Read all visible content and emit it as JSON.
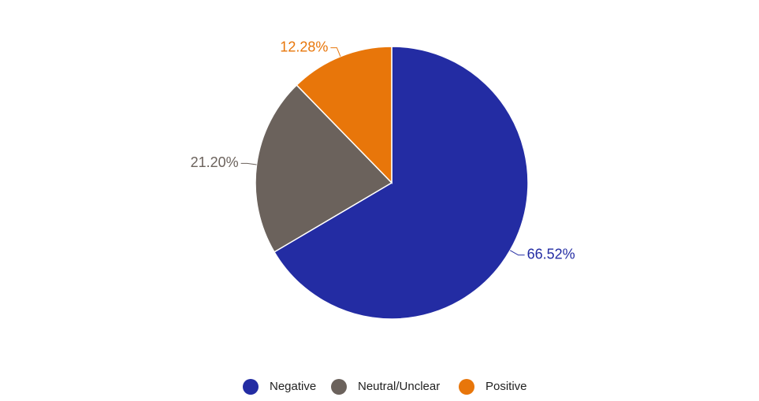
{
  "chart_data": {
    "type": "pie",
    "categories": [
      "Negative",
      "Neutral/Unclear",
      "Positive"
    ],
    "values": [
      66.52,
      21.2,
      12.28
    ],
    "value_labels": [
      "66.52%",
      "21.20%",
      "12.28%"
    ],
    "colors": [
      "#232ca3",
      "#6b625c",
      "#e8760a"
    ]
  }
}
